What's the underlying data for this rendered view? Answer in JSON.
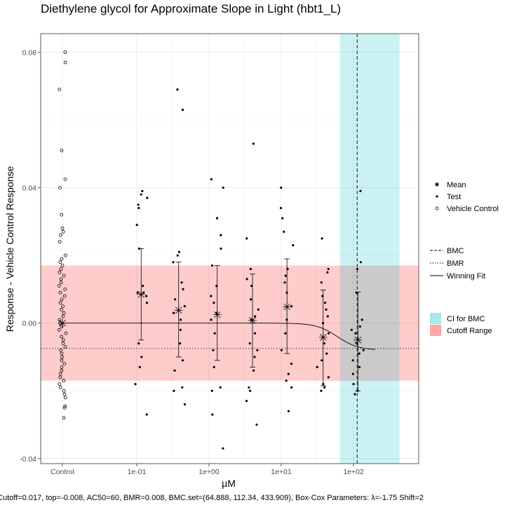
{
  "chart_data": {
    "type": "scatter",
    "title": "Diethylene glycol for Approximate Slope in Light (hbt1_L)",
    "xlabel": "µM",
    "ylabel": "Response - Vehicle Control Response",
    "x_scale": "log10",
    "x_ticks": [
      {
        "label": "Control",
        "value": "control"
      },
      {
        "label": "1e-01",
        "value": 0.1
      },
      {
        "label": "1e+00",
        "value": 1
      },
      {
        "label": "1e+01",
        "value": 10
      },
      {
        "label": "1e+02",
        "value": 100
      }
    ],
    "y_ticks": [
      "0.08",
      "0.04",
      "0.00",
      "-0.04"
    ],
    "y_tick_values": [
      0.08,
      0.04,
      0.0,
      -0.04
    ],
    "ylim": [
      -0.0415,
      0.0855
    ],
    "grid": true,
    "cutoff_range": [
      -0.017,
      0.017
    ],
    "bmc_ci": [
      64.888,
      433.909
    ],
    "bmc": 112.34,
    "bmr_line": -0.0075,
    "winning_fit": {
      "type": "hill",
      "top": -0.008,
      "ac50": 60,
      "n": 3,
      "x_range": [
        0.0,
        200
      ]
    },
    "control_points": [
      0.08,
      0.077,
      0.069,
      0.051,
      0.0425,
      0.04,
      0.032,
      0.028,
      0.027,
      0.026,
      0.024,
      0.02,
      0.019,
      0.018,
      0.017,
      0.016,
      0.015,
      0.014,
      0.013,
      0.012,
      0.011,
      0.01,
      0.009,
      0.008,
      0.007,
      0.006,
      0.005,
      0.004,
      0.003,
      0.002,
      0.001,
      0.0,
      -0.001,
      -0.002,
      -0.003,
      -0.004,
      -0.005,
      -0.006,
      -0.007,
      -0.008,
      -0.009,
      -0.01,
      -0.011,
      -0.012,
      -0.013,
      -0.014,
      -0.015,
      -0.016,
      -0.017,
      -0.018,
      -0.019,
      -0.02,
      -0.021,
      -0.022,
      -0.0245,
      -0.025,
      -0.028
    ],
    "test_groups": [
      {
        "conc": 0.115,
        "mean": 0.0085,
        "err_hi": 0.022,
        "err_lo": -0.005,
        "points": [
          0.039,
          0.038,
          0.037,
          0.035,
          0.034,
          0.029,
          0.022,
          0.011,
          0.009,
          0.009,
          0.008,
          0.006,
          -0.006,
          -0.01,
          -0.013,
          -0.018,
          -0.027
        ]
      },
      {
        "conc": 0.38,
        "mean": 0.0038,
        "err_hi": 0.018,
        "err_lo": -0.01,
        "points": [
          0.069,
          0.063,
          0.021,
          0.02,
          0.018,
          0.012,
          0.01,
          0.007,
          0.005,
          0.003,
          0.001,
          -0.002,
          -0.006,
          -0.011,
          -0.014,
          -0.019,
          -0.02,
          -0.024
        ]
      },
      {
        "conc": 1.3,
        "mean": 0.0025,
        "err_hi": 0.017,
        "err_lo": -0.011,
        "points": [
          0.0425,
          0.04,
          0.031,
          0.026,
          0.022,
          0.017,
          0.011,
          0.008,
          0.006,
          0.003,
          0.001,
          -0.003,
          -0.008,
          -0.013,
          -0.019,
          -0.02,
          -0.027,
          -0.037
        ]
      },
      {
        "conc": 4.0,
        "mean": 0.0008,
        "err_hi": 0.0145,
        "err_lo": -0.013,
        "points": [
          0.053,
          0.025,
          0.016,
          0.013,
          0.011,
          0.007,
          0.004,
          0.002,
          0.001,
          -0.003,
          -0.006,
          -0.008,
          -0.01,
          -0.014,
          -0.019,
          -0.02,
          -0.023,
          -0.03
        ]
      },
      {
        "conc": 12.0,
        "mean": 0.0048,
        "err_hi": 0.019,
        "err_lo": -0.009,
        "points": [
          0.04,
          0.034,
          0.031,
          0.027,
          0.023,
          0.016,
          0.014,
          0.012,
          0.009,
          0.005,
          0.001,
          -0.003,
          -0.008,
          -0.012,
          -0.015,
          -0.017,
          -0.019,
          -0.026
        ]
      },
      {
        "conc": 38.0,
        "mean": -0.0042,
        "err_hi": 0.0098,
        "err_lo": -0.0185,
        "points": [
          0.025,
          0.016,
          0.015,
          0.012,
          0.008,
          0.006,
          0.004,
          0.002,
          0.0,
          -0.003,
          -0.006,
          -0.009,
          -0.011,
          -0.013,
          -0.016,
          -0.018,
          -0.019,
          -0.02
        ]
      },
      {
        "conc": 115.0,
        "mean": -0.005,
        "err_hi": 0.0092,
        "err_lo": -0.02,
        "points": [
          0.039,
          0.018,
          0.016,
          0.009,
          0.001,
          -0.001,
          -0.002,
          -0.003,
          -0.006,
          -0.008,
          -0.009,
          -0.011,
          -0.013,
          -0.015,
          -0.018,
          -0.02,
          -0.021
        ]
      }
    ],
    "legend_points": [
      {
        "label": "Mean",
        "symbol": "asterisk"
      },
      {
        "label": "Test",
        "symbol": "dot"
      },
      {
        "label": "Vehicle Control",
        "symbol": "open-circle"
      }
    ],
    "legend_lines": [
      {
        "label": "BMC",
        "style": "dashed"
      },
      {
        "label": "BMR",
        "style": "dotted"
      },
      {
        "label": "Winning Fit",
        "style": "solid"
      }
    ],
    "legend_fills": [
      {
        "label": "CI for BMC",
        "color": "#00c0c7",
        "alpha": 0.2
      },
      {
        "label": "Cutoff Range",
        "color": "#ff0000",
        "alpha": 0.2
      }
    ],
    "caption": "Cutoff=0.017, top=-0.008, AC50=60, BMR=0.008, BMC.set=(64.888, 112.34, 433.909), Box-Cox Parameters: λ=-1.75 Shift=2"
  }
}
